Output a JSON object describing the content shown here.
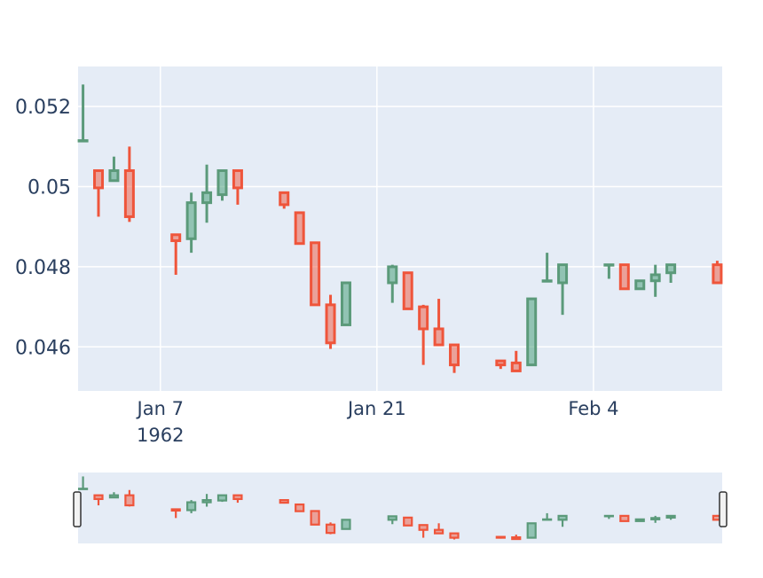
{
  "chart_data": {
    "type": "candlestick",
    "title": "",
    "xlabel": "",
    "ylabel": "",
    "ylim": [
      0.0449,
      0.053
    ],
    "xlim": [
      "1962-01-02",
      "1962-02-12"
    ],
    "yticks": [
      {
        "value": 0.046,
        "label": "0.046"
      },
      {
        "value": 0.048,
        "label": "0.048"
      },
      {
        "value": 0.05,
        "label": "0.05"
      },
      {
        "value": 0.052,
        "label": "0.052"
      }
    ],
    "xticks": [
      {
        "date": "1962-01-07",
        "label": "Jan 7",
        "sublabel": "1962"
      },
      {
        "date": "1962-01-21",
        "label": "Jan 21",
        "sublabel": ""
      },
      {
        "date": "1962-02-04",
        "label": "Feb 4",
        "sublabel": ""
      }
    ],
    "grid": true,
    "range_slider": true,
    "colors": {
      "increasing": "#3d9970",
      "increasing_line": "#5b9a7a",
      "decreasing": "#ef553b",
      "plot_bg": "#e5ecf6",
      "grid": "#ffffff",
      "tick_text": "#2a3f5f"
    },
    "candles": [
      {
        "date": "1962-01-02",
        "open": 0.05115,
        "high": 0.05255,
        "low": 0.05115,
        "close": 0.05115
      },
      {
        "date": "1962-01-03",
        "open": 0.0504,
        "high": 0.0504,
        "low": 0.04925,
        "close": 0.04997
      },
      {
        "date": "1962-01-04",
        "open": 0.05015,
        "high": 0.05075,
        "low": 0.05015,
        "close": 0.0504
      },
      {
        "date": "1962-01-05",
        "open": 0.0504,
        "high": 0.051,
        "low": 0.04912,
        "close": 0.04925
      },
      {
        "date": "1962-01-08",
        "open": 0.0488,
        "high": 0.0488,
        "low": 0.0478,
        "close": 0.04865
      },
      {
        "date": "1962-01-09",
        "open": 0.0487,
        "high": 0.04985,
        "low": 0.04835,
        "close": 0.0496
      },
      {
        "date": "1962-01-10",
        "open": 0.0496,
        "high": 0.05055,
        "low": 0.0491,
        "close": 0.04985
      },
      {
        "date": "1962-01-11",
        "open": 0.0498,
        "high": 0.0504,
        "low": 0.04965,
        "close": 0.0504
      },
      {
        "date": "1962-01-12",
        "open": 0.0504,
        "high": 0.0504,
        "low": 0.04955,
        "close": 0.04997
      },
      {
        "date": "1962-01-15",
        "open": 0.04985,
        "high": 0.04985,
        "low": 0.04945,
        "close": 0.04955
      },
      {
        "date": "1962-01-16",
        "open": 0.04935,
        "high": 0.04935,
        "low": 0.0486,
        "close": 0.04858
      },
      {
        "date": "1962-01-17",
        "open": 0.0486,
        "high": 0.0486,
        "low": 0.04705,
        "close": 0.04705
      },
      {
        "date": "1962-01-18",
        "open": 0.04705,
        "high": 0.0473,
        "low": 0.04595,
        "close": 0.0461
      },
      {
        "date": "1962-01-19",
        "open": 0.04655,
        "high": 0.0476,
        "low": 0.04655,
        "close": 0.0476
      },
      {
        "date": "1962-01-22",
        "open": 0.0476,
        "high": 0.04805,
        "low": 0.0471,
        "close": 0.048
      },
      {
        "date": "1962-01-23",
        "open": 0.04785,
        "high": 0.04785,
        "low": 0.04695,
        "close": 0.04695
      },
      {
        "date": "1962-01-24",
        "open": 0.047,
        "high": 0.04705,
        "low": 0.04555,
        "close": 0.04645
      },
      {
        "date": "1962-01-25",
        "open": 0.04645,
        "high": 0.0472,
        "low": 0.04605,
        "close": 0.04605
      },
      {
        "date": "1962-01-26",
        "open": 0.04605,
        "high": 0.04605,
        "low": 0.04535,
        "close": 0.04555
      },
      {
        "date": "1962-01-29",
        "open": 0.04565,
        "high": 0.04565,
        "low": 0.04545,
        "close": 0.04555
      },
      {
        "date": "1962-01-30",
        "open": 0.0456,
        "high": 0.0459,
        "low": 0.0454,
        "close": 0.0454
      },
      {
        "date": "1962-01-31",
        "open": 0.04555,
        "high": 0.0472,
        "low": 0.04555,
        "close": 0.0472
      },
      {
        "date": "1962-02-01",
        "open": 0.04765,
        "high": 0.04835,
        "low": 0.04765,
        "close": 0.04765
      },
      {
        "date": "1962-02-02",
        "open": 0.0476,
        "high": 0.04805,
        "low": 0.0468,
        "close": 0.04805
      },
      {
        "date": "1962-02-05",
        "open": 0.04805,
        "high": 0.04805,
        "low": 0.0477,
        "close": 0.04805
      },
      {
        "date": "1962-02-06",
        "open": 0.04805,
        "high": 0.04805,
        "low": 0.04745,
        "close": 0.04745
      },
      {
        "date": "1962-02-07",
        "open": 0.04745,
        "high": 0.04765,
        "low": 0.04745,
        "close": 0.04765
      },
      {
        "date": "1962-02-08",
        "open": 0.04765,
        "high": 0.04805,
        "low": 0.04725,
        "close": 0.0478
      },
      {
        "date": "1962-02-09",
        "open": 0.04785,
        "high": 0.04805,
        "low": 0.0476,
        "close": 0.04805
      },
      {
        "date": "1962-02-12",
        "open": 0.04805,
        "high": 0.04815,
        "low": 0.0476,
        "close": 0.0476
      }
    ]
  }
}
